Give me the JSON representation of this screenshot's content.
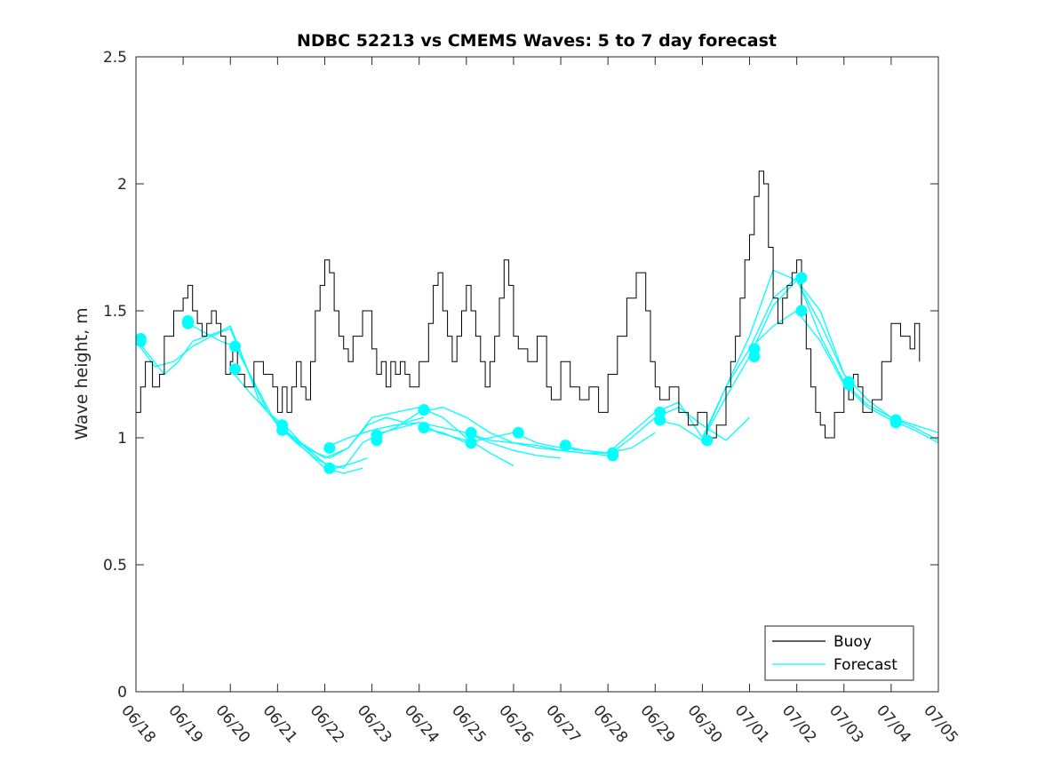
{
  "chart_data": {
    "type": "line",
    "title": "NDBC 52213 vs CMEMS Waves: 5 to 7 day forecast",
    "xlabel": "",
    "ylabel": "Wave height, m",
    "xlim": [
      0,
      17
    ],
    "ylim": [
      0,
      2.5
    ],
    "x_tick_labels": [
      "06/18",
      "06/19",
      "06/20",
      "06/21",
      "06/22",
      "06/23",
      "06/24",
      "06/25",
      "06/26",
      "06/27",
      "06/28",
      "06/29",
      "06/30",
      "07/01",
      "07/02",
      "07/03",
      "07/04",
      "07/05"
    ],
    "y_tick_labels": [
      "0",
      "0.5",
      "1",
      "1.5",
      "2",
      "2.5"
    ],
    "y_ticks": [
      0,
      0.5,
      1,
      1.5,
      2,
      2.5
    ],
    "grid": false,
    "legend": {
      "position": "bottom-right",
      "entries": [
        "Buoy",
        "Forecast"
      ]
    },
    "colors": {
      "buoy": "#000000",
      "forecast": "#00ffff"
    },
    "series": [
      {
        "name": "Buoy",
        "x": [
          0,
          0.1,
          0.2,
          0.35,
          0.5,
          0.6,
          0.8,
          1.0,
          1.1,
          1.2,
          1.3,
          1.4,
          1.5,
          1.6,
          1.7,
          1.8,
          1.9,
          2.0,
          2.05,
          2.15,
          2.3,
          2.5,
          2.7,
          2.9,
          3.0,
          3.1,
          3.2,
          3.3,
          3.4,
          3.5,
          3.6,
          3.7,
          3.8,
          3.9,
          4.0,
          4.1,
          4.2,
          4.3,
          4.4,
          4.5,
          4.6,
          4.8,
          5.0,
          5.1,
          5.2,
          5.3,
          5.4,
          5.5,
          5.6,
          5.7,
          5.8,
          6.0,
          6.2,
          6.3,
          6.4,
          6.5,
          6.6,
          6.7,
          6.8,
          6.9,
          7.0,
          7.1,
          7.2,
          7.3,
          7.4,
          7.5,
          7.6,
          7.7,
          7.8,
          7.9,
          8.0,
          8.1,
          8.3,
          8.5,
          8.7,
          8.8,
          9.0,
          9.2,
          9.4,
          9.6,
          9.8,
          10.0,
          10.2,
          10.4,
          10.6,
          10.8,
          10.9,
          11.0,
          11.1,
          11.3,
          11.5,
          11.7,
          11.9,
          12.1,
          12.3,
          12.5,
          12.6,
          12.7,
          12.8,
          12.9,
          13.0,
          13.1,
          13.2,
          13.3,
          13.4,
          13.5,
          13.6,
          13.7,
          13.8,
          13.9,
          14.0,
          14.1,
          14.2,
          14.3,
          14.4,
          14.5,
          14.6,
          14.8,
          15.0,
          15.1,
          15.2,
          15.3,
          15.4,
          15.6,
          15.8,
          16.0,
          16.2,
          16.4,
          16.5,
          16.6
        ],
        "values": [
          1.1,
          1.2,
          1.3,
          1.2,
          1.25,
          1.4,
          1.5,
          1.55,
          1.6,
          1.5,
          1.45,
          1.4,
          1.45,
          1.5,
          1.45,
          1.4,
          1.25,
          1.3,
          1.35,
          1.25,
          1.2,
          1.3,
          1.25,
          1.2,
          1.1,
          1.2,
          1.1,
          1.2,
          1.3,
          1.2,
          1.15,
          1.3,
          1.5,
          1.6,
          1.7,
          1.65,
          1.5,
          1.4,
          1.35,
          1.3,
          1.4,
          1.5,
          1.35,
          1.25,
          1.3,
          1.2,
          1.3,
          1.25,
          1.3,
          1.25,
          1.2,
          1.3,
          1.45,
          1.6,
          1.65,
          1.5,
          1.4,
          1.3,
          1.4,
          1.5,
          1.6,
          1.5,
          1.4,
          1.3,
          1.2,
          1.3,
          1.4,
          1.55,
          1.7,
          1.6,
          1.4,
          1.35,
          1.3,
          1.4,
          1.2,
          1.15,
          1.3,
          1.2,
          1.15,
          1.2,
          1.1,
          1.25,
          1.4,
          1.55,
          1.65,
          1.5,
          1.3,
          1.2,
          1.15,
          1.2,
          1.1,
          1.05,
          1.1,
          1.0,
          1.05,
          1.2,
          1.3,
          1.4,
          1.55,
          1.7,
          1.8,
          1.95,
          2.05,
          2.0,
          1.75,
          1.55,
          1.45,
          1.55,
          1.6,
          1.65,
          1.7,
          1.5,
          1.35,
          1.2,
          1.1,
          1.05,
          1.0,
          1.1,
          1.2,
          1.15,
          1.25,
          1.2,
          1.1,
          1.15,
          1.3,
          1.45,
          1.4,
          1.35,
          1.45,
          1.3
        ]
      },
      {
        "name": "Forecast",
        "x": [
          0,
          0.5,
          1,
          1.5,
          2,
          2.5,
          3,
          3.5,
          4,
          4.5,
          5,
          5.5,
          6,
          6.5,
          7,
          7.5,
          8,
          8.5,
          9,
          9.5,
          10,
          10.5,
          11,
          11.5,
          12,
          12.5,
          13,
          13.5,
          14,
          14.5,
          15,
          15.5,
          16,
          16.5,
          17
        ],
        "values": [
          1.38,
          1.3,
          1.35,
          1.4,
          1.28,
          1.12,
          1.02,
          0.95,
          0.9,
          0.92,
          0.98,
          1.02,
          1.05,
          1.02,
          0.98,
          0.98,
          1.01,
          0.99,
          0.97,
          0.96,
          0.94,
          0.98,
          1.08,
          1.05,
          1.0,
          1.12,
          1.35,
          1.55,
          1.58,
          1.45,
          1.22,
          1.12,
          1.08,
          1.05,
          1.0
        ]
      }
    ],
    "forecast_runs": [
      {
        "x": [
          0,
          0.3,
          0.6,
          0.9,
          1.2,
          1.5,
          1.8,
          2.0,
          2.3,
          2.6,
          3.0,
          3.4,
          3.8,
          4.2,
          4.6,
          4.9
        ],
        "values": [
          1.39,
          1.32,
          1.25,
          1.3,
          1.38,
          1.4,
          1.42,
          1.44,
          1.3,
          1.15,
          1.05,
          0.98,
          0.92,
          0.88,
          0.9,
          0.92
        ]
      },
      {
        "x": [
          0,
          0.4,
          0.8,
          1.2,
          1.6,
          2.0,
          2.4,
          2.8,
          3.2,
          3.6,
          4.0,
          4.4,
          4.8
        ],
        "values": [
          1.38,
          1.28,
          1.3,
          1.36,
          1.4,
          1.43,
          1.25,
          1.1,
          1.02,
          0.95,
          0.88,
          0.86,
          0.88
        ]
      },
      {
        "x": [
          1.0,
          1.4,
          1.8,
          2.1,
          2.5,
          2.9,
          3.3,
          3.7,
          4.1,
          4.5,
          4.9,
          5.3,
          5.7,
          6.1
        ],
        "values": [
          1.46,
          1.42,
          1.38,
          1.36,
          1.22,
          1.08,
          1.0,
          0.95,
          0.92,
          0.96,
          1.05,
          1.08,
          1.06,
          1.08
        ]
      },
      {
        "x": [
          2.0,
          2.4,
          2.8,
          3.2,
          3.6,
          4.0,
          4.4,
          4.8,
          5.2,
          5.6,
          6.0,
          6.4,
          6.8,
          7.2
        ],
        "values": [
          1.27,
          1.18,
          1.1,
          1.04,
          0.96,
          0.9,
          0.88,
          0.98,
          1.02,
          1.04,
          1.06,
          1.02,
          1.0,
          0.98
        ]
      },
      {
        "x": [
          3.0,
          3.5,
          4.0,
          4.5,
          5.0,
          5.5,
          6.0,
          6.5,
          7.0,
          7.5,
          8.0
        ],
        "values": [
          1.05,
          0.98,
          0.92,
          0.96,
          1.08,
          1.1,
          1.12,
          1.08,
          1.0,
          0.94,
          0.89
        ]
      },
      {
        "x": [
          4.0,
          4.5,
          5.0,
          5.5,
          6.0,
          6.5,
          7.0,
          7.5,
          8.0,
          8.5,
          9.0
        ],
        "values": [
          0.96,
          1.0,
          1.03,
          1.05,
          1.06,
          1.04,
          1.02,
          0.98,
          0.95,
          0.93,
          0.92
        ]
      },
      {
        "x": [
          5.0,
          5.5,
          6.0,
          6.5,
          7.0,
          7.5,
          8.0,
          8.5,
          9.0,
          9.5,
          10.0
        ],
        "values": [
          1.0,
          1.04,
          1.1,
          1.12,
          1.08,
          1.02,
          0.98,
          0.96,
          0.95,
          0.94,
          0.94
        ]
      },
      {
        "x": [
          6.0,
          6.5,
          7.0,
          7.5,
          8.0,
          8.5,
          9.0,
          9.5,
          10.0,
          10.5,
          11.0
        ],
        "values": [
          1.04,
          1.02,
          0.98,
          1.0,
          1.02,
          0.98,
          0.96,
          0.95,
          0.94,
          0.96,
          1.02
        ]
      },
      {
        "x": [
          7.0,
          7.5,
          8.0,
          8.5,
          9.0,
          9.5,
          10.0,
          10.5,
          11.0,
          11.5,
          12.0,
          12.5,
          13.0
        ],
        "values": [
          1.02,
          0.99,
          0.98,
          0.97,
          0.95,
          0.94,
          0.93,
          1.0,
          1.08,
          1.12,
          1.05,
          0.99,
          1.08
        ]
      },
      {
        "x": [
          9.0,
          9.5,
          10.0,
          10.5,
          11.0,
          11.5,
          12.0,
          12.5,
          13.0,
          13.5,
          14.0,
          14.5,
          15.0
        ],
        "values": [
          0.97,
          0.95,
          0.94,
          1.02,
          1.1,
          1.14,
          1.0,
          1.2,
          1.4,
          1.66,
          1.62,
          1.45,
          1.25
        ]
      },
      {
        "x": [
          11.0,
          11.5,
          12.0,
          12.5,
          13.0,
          13.5,
          14.0,
          14.5,
          15.0,
          15.5,
          16.0,
          16.5,
          17.0
        ],
        "values": [
          1.07,
          1.05,
          0.99,
          1.16,
          1.32,
          1.52,
          1.62,
          1.5,
          1.25,
          1.15,
          1.08,
          1.05,
          1.02
        ]
      },
      {
        "x": [
          12.0,
          12.5,
          13.0,
          13.5,
          14.0,
          14.5,
          15.0,
          15.5,
          16.0,
          16.5,
          17.0
        ],
        "values": [
          0.99,
          1.2,
          1.35,
          1.44,
          1.5,
          1.38,
          1.21,
          1.12,
          1.07,
          1.03,
          0.98
        ]
      },
      {
        "x": [
          13.0,
          13.5,
          14.0,
          14.5,
          15.0,
          15.5,
          16.0,
          16.5,
          17.0
        ],
        "values": [
          1.35,
          1.55,
          1.63,
          1.4,
          1.22,
          1.13,
          1.08,
          1.04,
          0.99
        ]
      }
    ],
    "forecast_markers": [
      {
        "x": 0.1,
        "y": 1.39
      },
      {
        "x": 0.1,
        "y": 1.38
      },
      {
        "x": 1.1,
        "y": 1.46
      },
      {
        "x": 1.1,
        "y": 1.45
      },
      {
        "x": 2.1,
        "y": 1.36
      },
      {
        "x": 2.1,
        "y": 1.27
      },
      {
        "x": 3.1,
        "y": 1.05
      },
      {
        "x": 3.1,
        "y": 1.03
      },
      {
        "x": 4.1,
        "y": 0.96
      },
      {
        "x": 4.1,
        "y": 0.88
      },
      {
        "x": 5.1,
        "y": 1.01
      },
      {
        "x": 5.1,
        "y": 0.99
      },
      {
        "x": 6.1,
        "y": 1.11
      },
      {
        "x": 6.1,
        "y": 1.04
      },
      {
        "x": 7.1,
        "y": 1.02
      },
      {
        "x": 7.1,
        "y": 0.98
      },
      {
        "x": 8.1,
        "y": 1.02
      },
      {
        "x": 9.1,
        "y": 0.97
      },
      {
        "x": 10.1,
        "y": 0.94
      },
      {
        "x": 10.1,
        "y": 0.93
      },
      {
        "x": 11.1,
        "y": 1.1
      },
      {
        "x": 11.1,
        "y": 1.07
      },
      {
        "x": 12.1,
        "y": 0.99
      },
      {
        "x": 13.1,
        "y": 1.35
      },
      {
        "x": 13.1,
        "y": 1.32
      },
      {
        "x": 14.1,
        "y": 1.63
      },
      {
        "x": 14.1,
        "y": 1.5
      },
      {
        "x": 15.1,
        "y": 1.22
      },
      {
        "x": 15.1,
        "y": 1.21
      },
      {
        "x": 16.1,
        "y": 1.07
      },
      {
        "x": 16.1,
        "y": 1.06
      }
    ]
  }
}
